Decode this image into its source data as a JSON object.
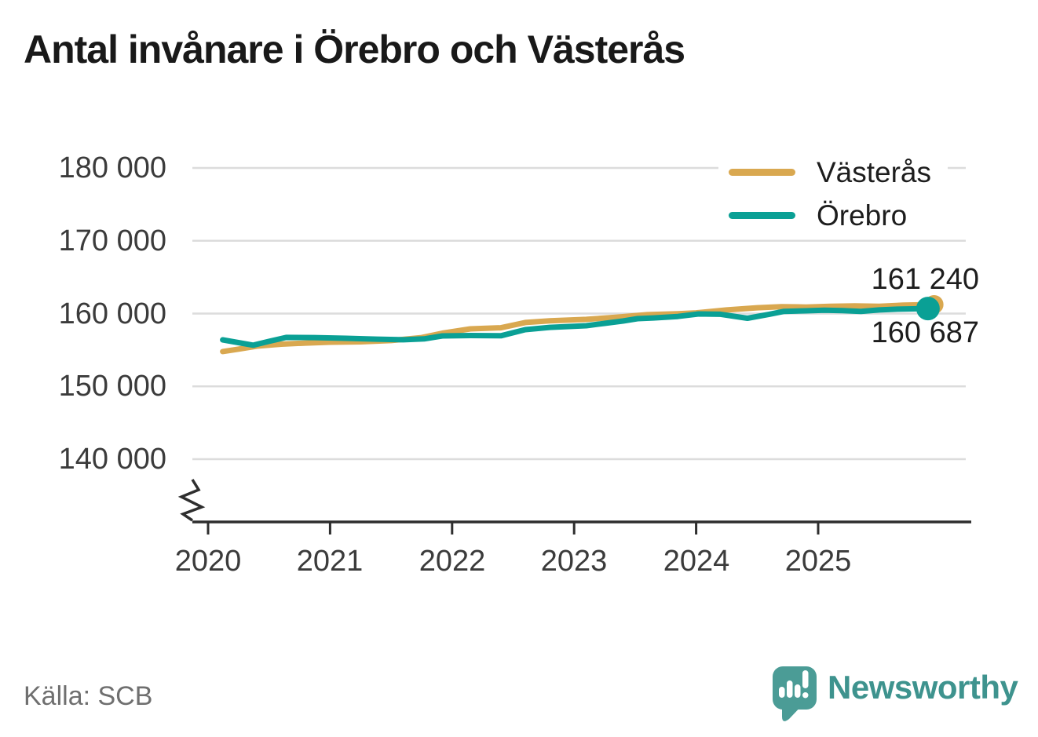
{
  "title": "Antal invånare i Örebro och Västerås",
  "source": "Källa: SCB",
  "brand": {
    "name": "Newsworthy",
    "color": "#3e938e",
    "icon_color": "#4b9c96",
    "icon": "speech-bubble-bar-chart"
  },
  "colors": {
    "vasteras": "#d9a850",
    "orebro": "#0aa095",
    "grid": "#dcdcdc",
    "axis": "#2e2e2e",
    "tick_text": "#3b3b3b",
    "label_text": "#1d1d1d",
    "source_text": "#6f6f6f"
  },
  "legend": [
    {
      "label": "Västerås",
      "color": "#d9a850"
    },
    {
      "label": "Örebro",
      "color": "#0aa095"
    }
  ],
  "end_labels": {
    "vasteras": "161 240",
    "orebro": "160 687"
  },
  "chart_data": {
    "type": "line",
    "title": "Antal invånare i Örebro och Västerås",
    "xlabel": "",
    "ylabel": "",
    "x_ticks": [
      {
        "label": "2020",
        "value": 2020
      },
      {
        "label": "2021",
        "value": 2021
      },
      {
        "label": "2022",
        "value": 2022
      },
      {
        "label": "2023",
        "value": 2023
      },
      {
        "label": "2024",
        "value": 2024
      },
      {
        "label": "2025",
        "value": 2025
      }
    ],
    "y_ticks": [
      {
        "label": "180 000",
        "value": 180000
      },
      {
        "label": "170 000",
        "value": 170000
      },
      {
        "label": "160 000",
        "value": 160000
      },
      {
        "label": "150 000",
        "value": 150000
      },
      {
        "label": "140 000",
        "value": 140000
      }
    ],
    "xlim": [
      2019.9,
      2026.3
    ],
    "ylim": [
      140000,
      183000
    ],
    "axis_break": true,
    "grid": "horizontal",
    "legend_position": "top-right",
    "series": [
      {
        "name": "Västerås",
        "color": "#d9a850",
        "final_value": 161240,
        "end_label": "161 240",
        "marker_radius": 12,
        "points": [
          [
            2020.12,
            154780
          ],
          [
            2020.25,
            155120
          ],
          [
            2020.4,
            155530
          ],
          [
            2020.6,
            155800
          ],
          [
            2020.8,
            155950
          ],
          [
            2021.0,
            156070
          ],
          [
            2021.25,
            156120
          ],
          [
            2021.5,
            156290
          ],
          [
            2021.75,
            156700
          ],
          [
            2021.92,
            157300
          ],
          [
            2022.15,
            157900
          ],
          [
            2022.4,
            158050
          ],
          [
            2022.6,
            158770
          ],
          [
            2022.8,
            159000
          ],
          [
            2023.1,
            159200
          ],
          [
            2023.35,
            159500
          ],
          [
            2023.6,
            159850
          ],
          [
            2023.85,
            159980
          ],
          [
            2024.0,
            160100
          ],
          [
            2024.25,
            160500
          ],
          [
            2024.5,
            160800
          ],
          [
            2024.7,
            160950
          ],
          [
            2024.9,
            160900
          ],
          [
            2025.1,
            161000
          ],
          [
            2025.3,
            161050
          ],
          [
            2025.5,
            161000
          ],
          [
            2025.7,
            161150
          ],
          [
            2025.95,
            161240
          ]
        ]
      },
      {
        "name": "Örebro",
        "color": "#0aa095",
        "final_value": 160687,
        "end_label": "160 687",
        "marker_radius": 15,
        "points": [
          [
            2020.12,
            156390
          ],
          [
            2020.23,
            156060
          ],
          [
            2020.37,
            155660
          ],
          [
            2020.5,
            156180
          ],
          [
            2020.64,
            156720
          ],
          [
            2020.87,
            156700
          ],
          [
            2021.13,
            156600
          ],
          [
            2021.38,
            156480
          ],
          [
            2021.6,
            156400
          ],
          [
            2021.77,
            156520
          ],
          [
            2021.92,
            156930
          ],
          [
            2022.15,
            156980
          ],
          [
            2022.4,
            156950
          ],
          [
            2022.6,
            157790
          ],
          [
            2022.8,
            158100
          ],
          [
            2023.1,
            158330
          ],
          [
            2023.25,
            158650
          ],
          [
            2023.4,
            158980
          ],
          [
            2023.52,
            159300
          ],
          [
            2023.65,
            159400
          ],
          [
            2023.85,
            159600
          ],
          [
            2024.02,
            159950
          ],
          [
            2024.2,
            159900
          ],
          [
            2024.42,
            159350
          ],
          [
            2024.6,
            159900
          ],
          [
            2024.72,
            160300
          ],
          [
            2024.9,
            160380
          ],
          [
            2025.05,
            160450
          ],
          [
            2025.2,
            160400
          ],
          [
            2025.35,
            160300
          ],
          [
            2025.5,
            160500
          ],
          [
            2025.65,
            160600
          ],
          [
            2025.9,
            160687
          ]
        ]
      }
    ]
  }
}
